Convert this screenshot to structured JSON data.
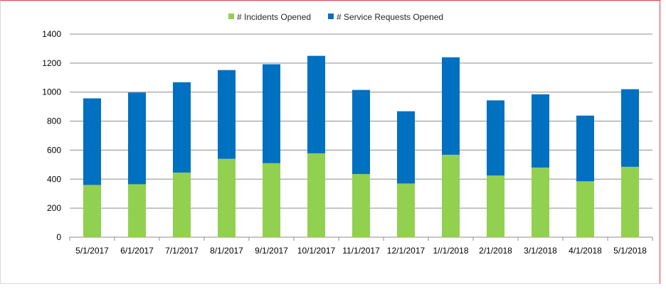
{
  "chart_data": {
    "type": "bar",
    "stacked": true,
    "categories": [
      "5/1/2017",
      "6/1/2017",
      "7/1/2017",
      "8/1/2017",
      "9/1/2017",
      "10/1/2017",
      "11/1/2017",
      "12/1/2017",
      "1//1/2018",
      "2/1/2018",
      "3/1/2018",
      "4/1/2018",
      "5/1/2018"
    ],
    "series": [
      {
        "name": "# Incidents Opened",
        "color": "#92d050",
        "values": [
          360,
          365,
          445,
          540,
          510,
          578,
          435,
          370,
          568,
          425,
          480,
          385,
          485
        ]
      },
      {
        "name": "# Service Requests Opened",
        "color": "#0070c0",
        "values": [
          597,
          632,
          623,
          612,
          682,
          672,
          580,
          498,
          672,
          518,
          505,
          453,
          535
        ]
      }
    ],
    "ylim": [
      0,
      1400
    ],
    "yticks": [
      "0",
      "200",
      "400",
      "600",
      "800",
      "1000",
      "1200",
      "1400"
    ],
    "grid": true,
    "legend_position": "top-center"
  }
}
